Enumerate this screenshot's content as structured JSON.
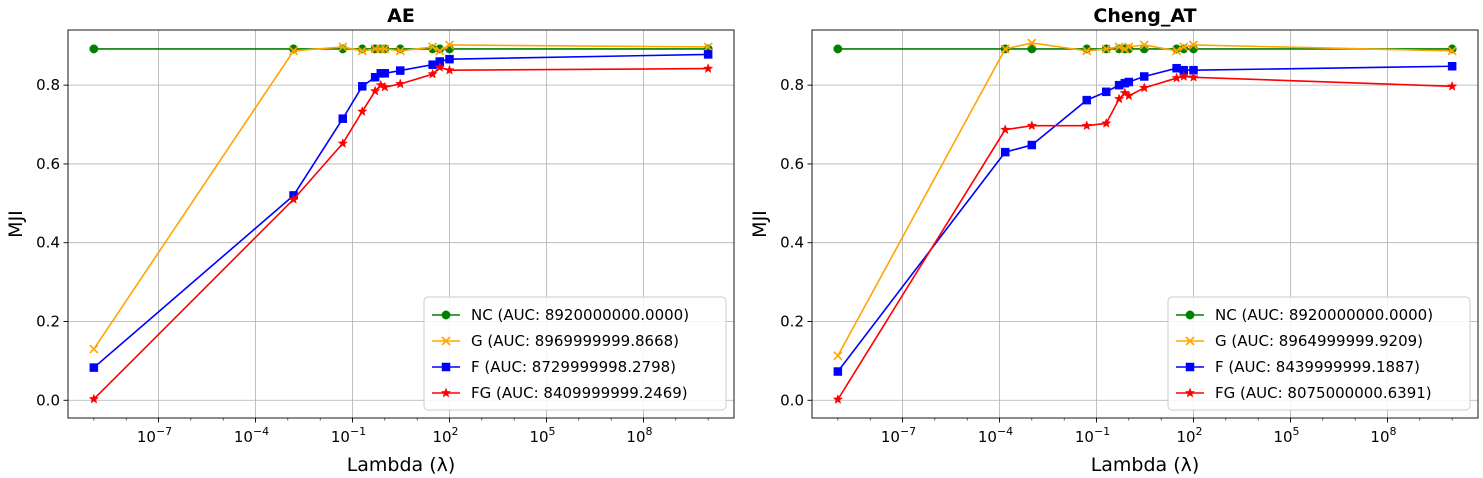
{
  "chart_data": [
    {
      "type": "line",
      "title": "AE",
      "xlabel": "Lambda (λ)",
      "ylabel": "MJI",
      "xscale": "log",
      "xlim_exp": [
        -9.8,
        10.8
      ],
      "xticks": [
        {
          "exp": -7,
          "label": "10"
        },
        {
          "exp": -4,
          "label": "10"
        },
        {
          "exp": -1,
          "label": "10"
        },
        {
          "exp": 2,
          "label": "10"
        },
        {
          "exp": 5,
          "label": "10"
        },
        {
          "exp": 8,
          "label": "10"
        }
      ],
      "xtick_exps": [
        "−7",
        "−4",
        "−1",
        "2",
        "5",
        "8"
      ],
      "ylim": [
        -0.045,
        0.94
      ],
      "yticks": [
        "0.0",
        "0.2",
        "0.4",
        "0.6",
        "0.8"
      ],
      "grid": true,
      "legend": "lower-right",
      "series": [
        {
          "name": "NC (AUC: 8920000000.0000)",
          "color": "#008000",
          "marker": "circle",
          "x": [
            1e-09,
            0.0015,
            0.05,
            0.2,
            0.5,
            0.75,
            1,
            3,
            30,
            50,
            100,
            10000000000.0
          ],
          "y": [
            0.892,
            0.892,
            0.892,
            0.892,
            0.892,
            0.892,
            0.892,
            0.892,
            0.892,
            0.892,
            0.892,
            0.892
          ]
        },
        {
          "name": "G (AUC: 8969999999.8668)",
          "color": "#ffa500",
          "marker": "x",
          "x": [
            1e-09,
            0.0015,
            0.05,
            0.2,
            0.5,
            0.75,
            1,
            3,
            30,
            50,
            100,
            10000000000.0
          ],
          "y": [
            0.13,
            0.887,
            0.897,
            0.887,
            0.892,
            0.892,
            0.892,
            0.887,
            0.897,
            0.887,
            0.902,
            0.897
          ]
        },
        {
          "name": "F (AUC: 8729999998.2798)",
          "color": "#0000ff",
          "marker": "square",
          "x": [
            1e-09,
            0.0015,
            0.05,
            0.2,
            0.5,
            0.75,
            1,
            3,
            30,
            50,
            100,
            10000000000.0
          ],
          "y": [
            0.083,
            0.52,
            0.715,
            0.797,
            0.82,
            0.83,
            0.83,
            0.837,
            0.852,
            0.86,
            0.866,
            0.878
          ]
        },
        {
          "name": "FG (AUC: 8409999999.2469)",
          "color": "#ff0000",
          "marker": "star",
          "x": [
            1e-09,
            0.0015,
            0.05,
            0.2,
            0.5,
            0.75,
            1,
            3,
            30,
            50,
            100,
            10000000000.0
          ],
          "y": [
            0.003,
            0.51,
            0.652,
            0.733,
            0.785,
            0.8,
            0.795,
            0.803,
            0.828,
            0.845,
            0.838,
            0.842
          ]
        }
      ]
    },
    {
      "type": "line",
      "title": "Cheng_AT",
      "xlabel": "Lambda (λ)",
      "ylabel": "MJI",
      "xscale": "log",
      "xlim_exp": [
        -9.8,
        10.8
      ],
      "xticks": [
        {
          "exp": -7,
          "label": "10"
        },
        {
          "exp": -4,
          "label": "10"
        },
        {
          "exp": -1,
          "label": "10"
        },
        {
          "exp": 2,
          "label": "10"
        },
        {
          "exp": 5,
          "label": "10"
        },
        {
          "exp": 8,
          "label": "10"
        }
      ],
      "xtick_exps": [
        "−7",
        "−4",
        "−1",
        "2",
        "5",
        "8"
      ],
      "ylim": [
        -0.045,
        0.94
      ],
      "yticks": [
        "0.0",
        "0.2",
        "0.4",
        "0.6",
        "0.8"
      ],
      "grid": true,
      "legend": "lower-right",
      "series": [
        {
          "name": "NC (AUC: 8920000000.0000)",
          "color": "#008000",
          "marker": "circle",
          "x": [
            1e-09,
            0.00015,
            0.001,
            0.05,
            0.2,
            0.5,
            0.75,
            1,
            3,
            30,
            50,
            100,
            10000000000.0
          ],
          "y": [
            0.892,
            0.892,
            0.892,
            0.892,
            0.892,
            0.892,
            0.892,
            0.892,
            0.892,
            0.892,
            0.892,
            0.892,
            0.892
          ]
        },
        {
          "name": "G (AUC: 8964999999.9209)",
          "color": "#ffa500",
          "marker": "x",
          "x": [
            1e-09,
            0.00015,
            0.001,
            0.05,
            0.2,
            0.5,
            0.75,
            1,
            3,
            30,
            50,
            100,
            10000000000.0
          ],
          "y": [
            0.113,
            0.892,
            0.907,
            0.887,
            0.892,
            0.897,
            0.892,
            0.897,
            0.902,
            0.887,
            0.897,
            0.902,
            0.887
          ]
        },
        {
          "name": "F (AUC: 8439999999.1887)",
          "color": "#0000ff",
          "marker": "square",
          "x": [
            1e-09,
            0.00015,
            0.001,
            0.05,
            0.2,
            0.5,
            0.75,
            1,
            3,
            30,
            50,
            100,
            10000000000.0
          ],
          "y": [
            0.073,
            0.63,
            0.648,
            0.762,
            0.783,
            0.8,
            0.805,
            0.808,
            0.822,
            0.843,
            0.838,
            0.838,
            0.848
          ]
        },
        {
          "name": "FG (AUC: 8075000000.6391)",
          "color": "#ff0000",
          "marker": "star",
          "x": [
            1e-09,
            0.00015,
            0.001,
            0.05,
            0.2,
            0.5,
            0.75,
            1,
            3,
            30,
            50,
            100,
            10000000000.0
          ],
          "y": [
            0.002,
            0.687,
            0.697,
            0.697,
            0.703,
            0.765,
            0.78,
            0.773,
            0.793,
            0.818,
            0.822,
            0.82,
            0.797
          ]
        }
      ]
    }
  ]
}
